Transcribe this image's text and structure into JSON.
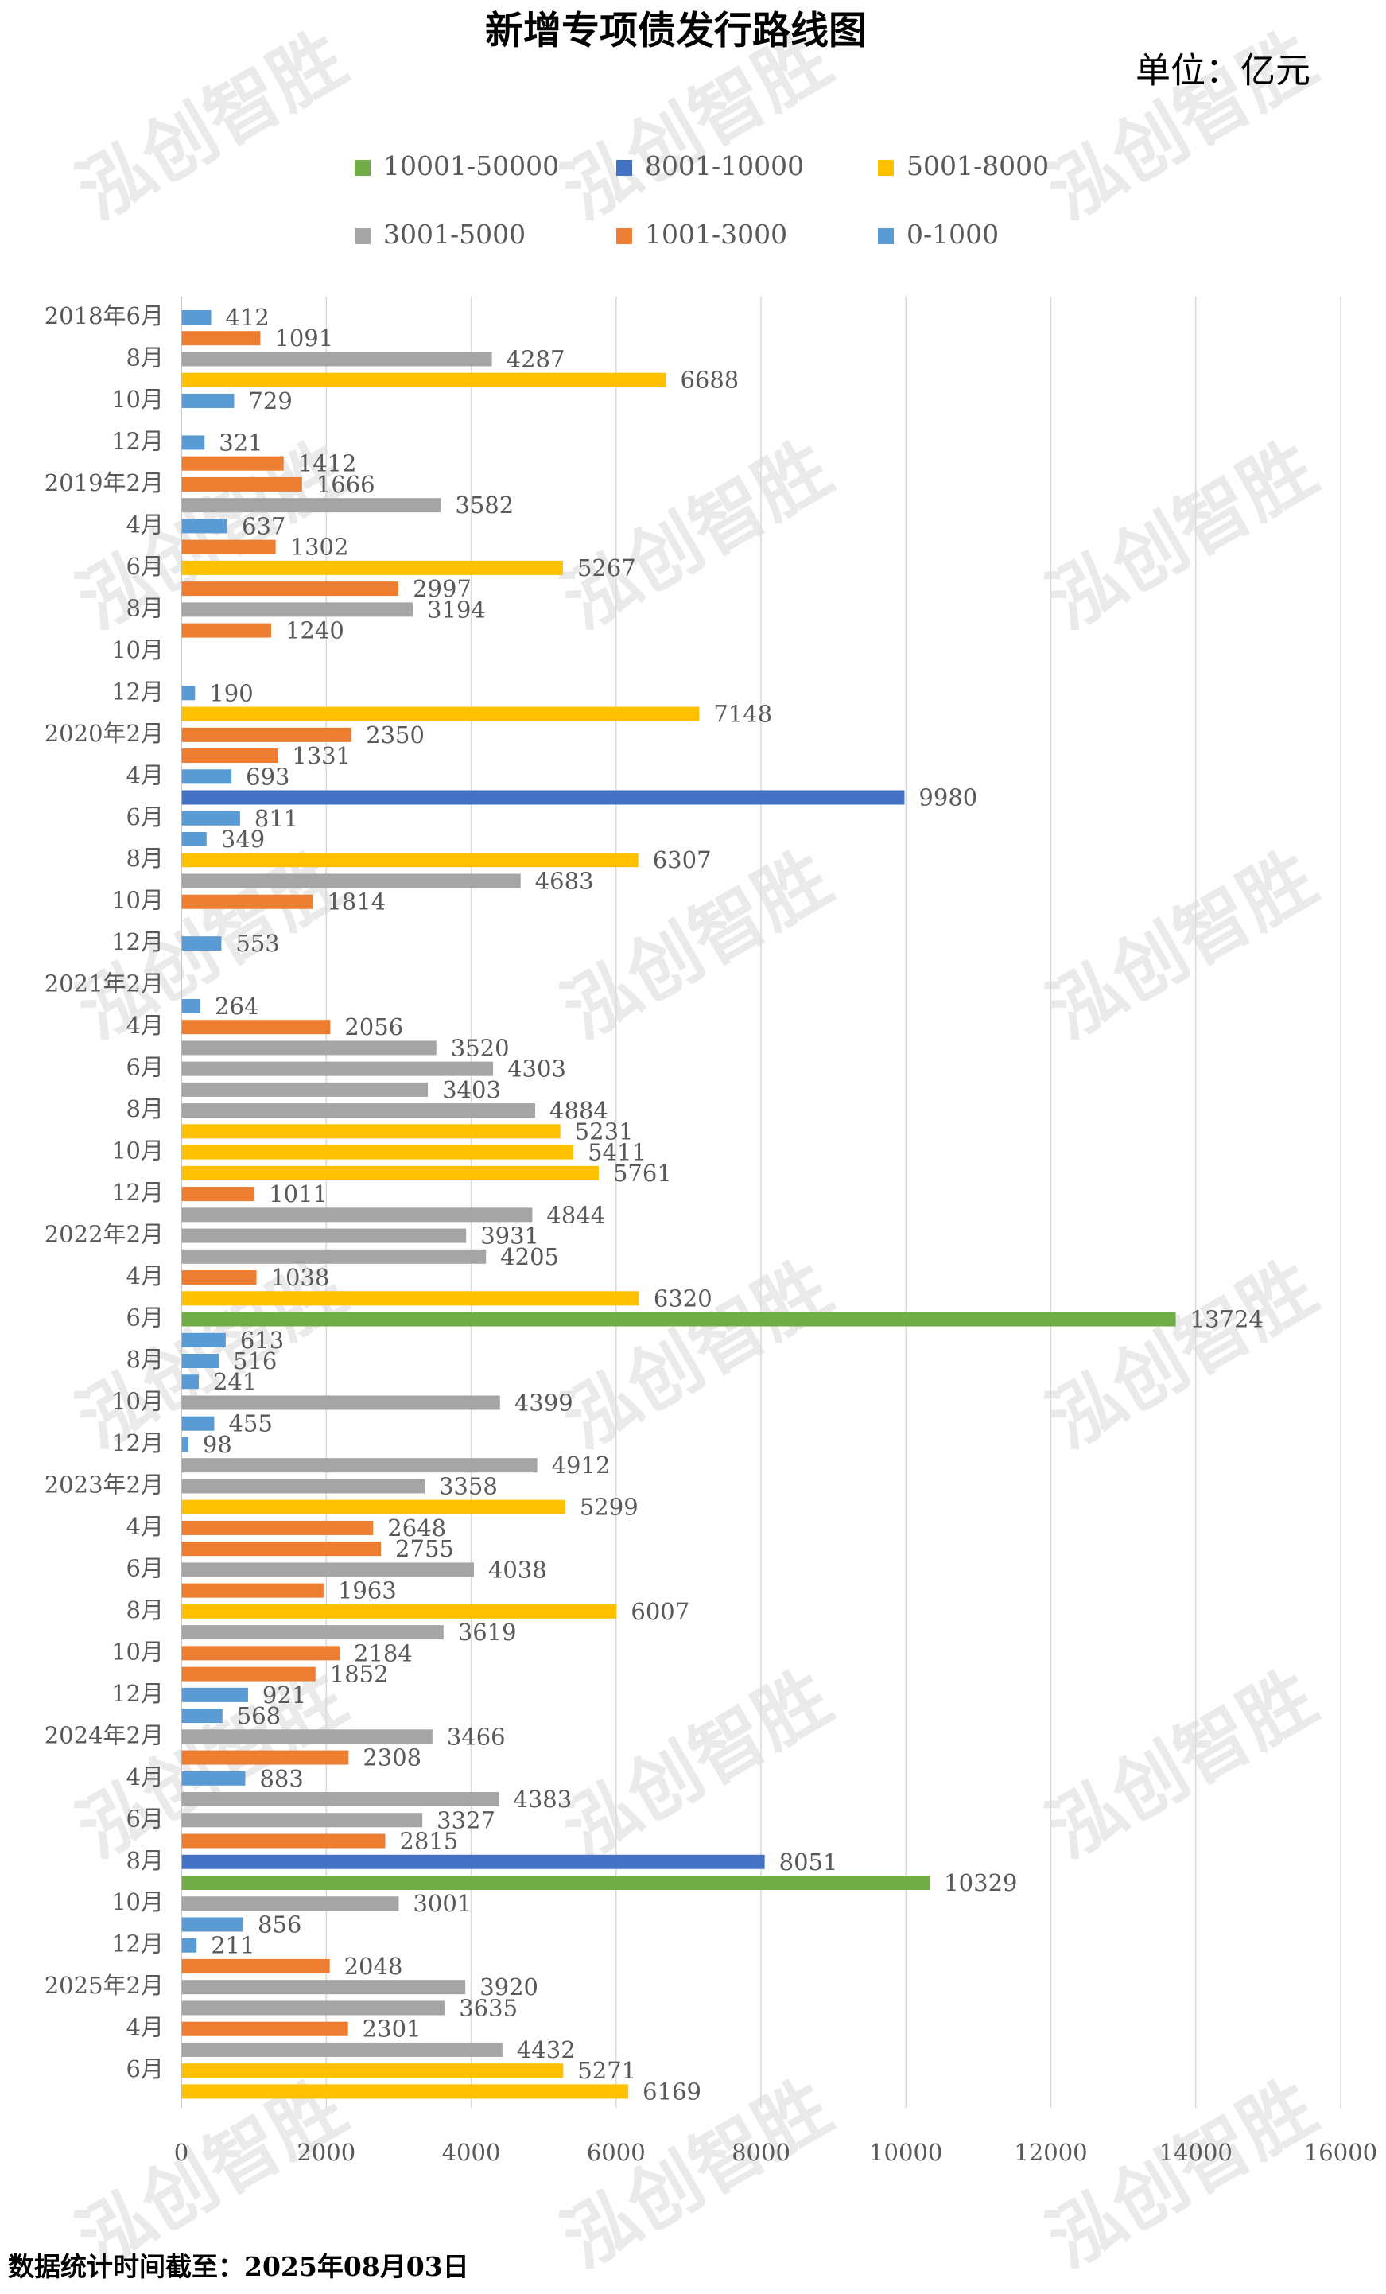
{
  "chart_data": {
    "type": "bar",
    "orientation": "horizontal",
    "title": "新增专项债发行路线图",
    "unit": "单位：亿元",
    "footnote": "数据统计时间截至：2025年08月03日",
    "watermark": "泓创智胜",
    "legend": [
      {
        "name": "10001-50000",
        "color": "#70ad47"
      },
      {
        "name": "8001-10000",
        "color": "#4472c4"
      },
      {
        "name": "5001-8000",
        "color": "#ffc000"
      },
      {
        "name": "3001-5000",
        "color": "#a5a5a5"
      },
      {
        "name": "1001-3000",
        "color": "#ed7d31"
      },
      {
        "name": "0-1000",
        "color": "#5b9bd5"
      }
    ],
    "categories": [
      "2018年6月",
      null,
      "8月",
      null,
      "10月",
      null,
      "12月",
      null,
      "2019年2月",
      null,
      "4月",
      null,
      "6月",
      null,
      "8月",
      null,
      "10月",
      null,
      "12月",
      null,
      "2020年2月",
      null,
      "4月",
      null,
      "6月",
      null,
      "8月",
      null,
      "10月",
      null,
      "12月",
      null,
      "2021年2月",
      null,
      "4月",
      null,
      "6月",
      null,
      "8月",
      null,
      "10月",
      null,
      "12月",
      null,
      "2022年2月",
      null,
      "4月",
      null,
      "6月",
      null,
      "8月",
      null,
      "10月",
      null,
      "12月",
      null,
      "2023年2月",
      null,
      "4月",
      null,
      "6月",
      null,
      "8月",
      null,
      "10月",
      null,
      "12月",
      null,
      "2024年2月",
      null,
      "4月",
      null,
      "6月",
      null,
      "8月",
      null,
      "10月",
      null,
      "12月",
      null,
      "2025年2月",
      null,
      "4月",
      null,
      "6月",
      null
    ],
    "values": [
      412,
      1091,
      4287,
      6688,
      729,
      null,
      321,
      1412,
      1666,
      3582,
      637,
      1302,
      5267,
      2997,
      3194,
      1240,
      null,
      null,
      190,
      7148,
      2350,
      1331,
      693,
      9980,
      811,
      349,
      6307,
      4683,
      1814,
      null,
      553,
      null,
      null,
      264,
      2056,
      3520,
      4303,
      3403,
      4884,
      5231,
      5411,
      5761,
      1011,
      4844,
      3931,
      4205,
      1038,
      6320,
      13724,
      613,
      516,
      241,
      4399,
      455,
      98,
      4912,
      3358,
      5299,
      2648,
      2755,
      4038,
      1963,
      6007,
      3619,
      2184,
      1852,
      921,
      568,
      3466,
      2308,
      883,
      4383,
      3327,
      2815,
      8051,
      10329,
      3001,
      856,
      211,
      2048,
      3920,
      3635,
      2301,
      4432,
      5271,
      6169
    ],
    "colors": [
      "#5b9bd5",
      "#ed7d31",
      "#a5a5a5",
      "#ffc000",
      "#5b9bd5",
      null,
      "#5b9bd5",
      "#ed7d31",
      "#ed7d31",
      "#a5a5a5",
      "#5b9bd5",
      "#ed7d31",
      "#ffc000",
      "#ed7d31",
      "#a5a5a5",
      "#ed7d31",
      null,
      null,
      "#5b9bd5",
      "#ffc000",
      "#ed7d31",
      "#ed7d31",
      "#5b9bd5",
      "#4472c4",
      "#5b9bd5",
      "#5b9bd5",
      "#ffc000",
      "#a5a5a5",
      "#ed7d31",
      null,
      "#5b9bd5",
      null,
      null,
      "#5b9bd5",
      "#ed7d31",
      "#a5a5a5",
      "#a5a5a5",
      "#a5a5a5",
      "#a5a5a5",
      "#ffc000",
      "#ffc000",
      "#ffc000",
      "#ed7d31",
      "#a5a5a5",
      "#a5a5a5",
      "#a5a5a5",
      "#ed7d31",
      "#ffc000",
      "#70ad47",
      "#5b9bd5",
      "#5b9bd5",
      "#5b9bd5",
      "#a5a5a5",
      "#5b9bd5",
      "#5b9bd5",
      "#a5a5a5",
      "#a5a5a5",
      "#ffc000",
      "#ed7d31",
      "#ed7d31",
      "#a5a5a5",
      "#ed7d31",
      "#ffc000",
      "#a5a5a5",
      "#ed7d31",
      "#ed7d31",
      "#5b9bd5",
      "#5b9bd5",
      "#a5a5a5",
      "#ed7d31",
      "#5b9bd5",
      "#a5a5a5",
      "#a5a5a5",
      "#ed7d31",
      "#4472c4",
      "#70ad47",
      "#a5a5a5",
      "#5b9bd5",
      "#5b9bd5",
      "#ed7d31",
      "#a5a5a5",
      "#a5a5a5",
      "#ed7d31",
      "#a5a5a5",
      "#ffc000",
      "#ffc000"
    ],
    "xlim": [
      0,
      16000
    ],
    "xticks": [
      0,
      2000,
      4000,
      6000,
      8000,
      10000,
      12000,
      14000,
      16000
    ],
    "grid": true
  }
}
